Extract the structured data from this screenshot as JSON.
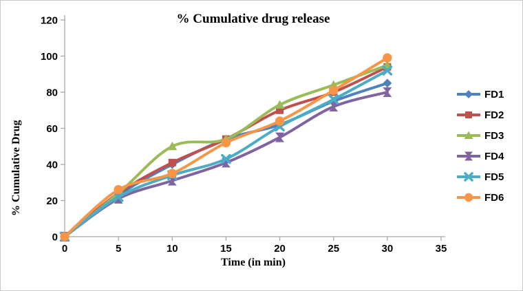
{
  "chart_data": {
    "type": "line",
    "title": "% Cumulative drug release",
    "xlabel": "Time (in min)",
    "ylabel": "% Cumulative Drug",
    "x": [
      0,
      5,
      10,
      15,
      20,
      25,
      30
    ],
    "xlim": [
      0,
      35
    ],
    "ylim": [
      0,
      120
    ],
    "x_ticks": [
      0,
      5,
      10,
      15,
      20,
      25,
      30,
      35
    ],
    "y_ticks": [
      0,
      20,
      40,
      60,
      80,
      100,
      120
    ],
    "grid": false,
    "legend_position": "right",
    "axis_color": "#a6a6a6",
    "series": [
      {
        "name": "FD1",
        "color": "#4F81BD",
        "marker": "diamond",
        "values": [
          0,
          23,
          40,
          54,
          62,
          75,
          85
        ]
      },
      {
        "name": "FD2",
        "color": "#C0504D",
        "marker": "square",
        "values": [
          0,
          24,
          41,
          54,
          70,
          80,
          94
        ]
      },
      {
        "name": "FD3",
        "color": "#9BBB59",
        "marker": "triangle",
        "values": [
          0,
          24,
          50,
          54,
          73,
          84,
          95
        ]
      },
      {
        "name": "FD4",
        "color": "#8064A2",
        "marker": "star",
        "values": [
          0,
          21,
          31,
          41,
          55,
          72,
          80
        ]
      },
      {
        "name": "FD5",
        "color": "#4BACC6",
        "marker": "x",
        "values": [
          0,
          22,
          34,
          43,
          61,
          76,
          92
        ]
      },
      {
        "name": "FD6",
        "color": "#F79646",
        "marker": "circle",
        "values": [
          0,
          26,
          35,
          52,
          64,
          81,
          99
        ]
      }
    ]
  }
}
